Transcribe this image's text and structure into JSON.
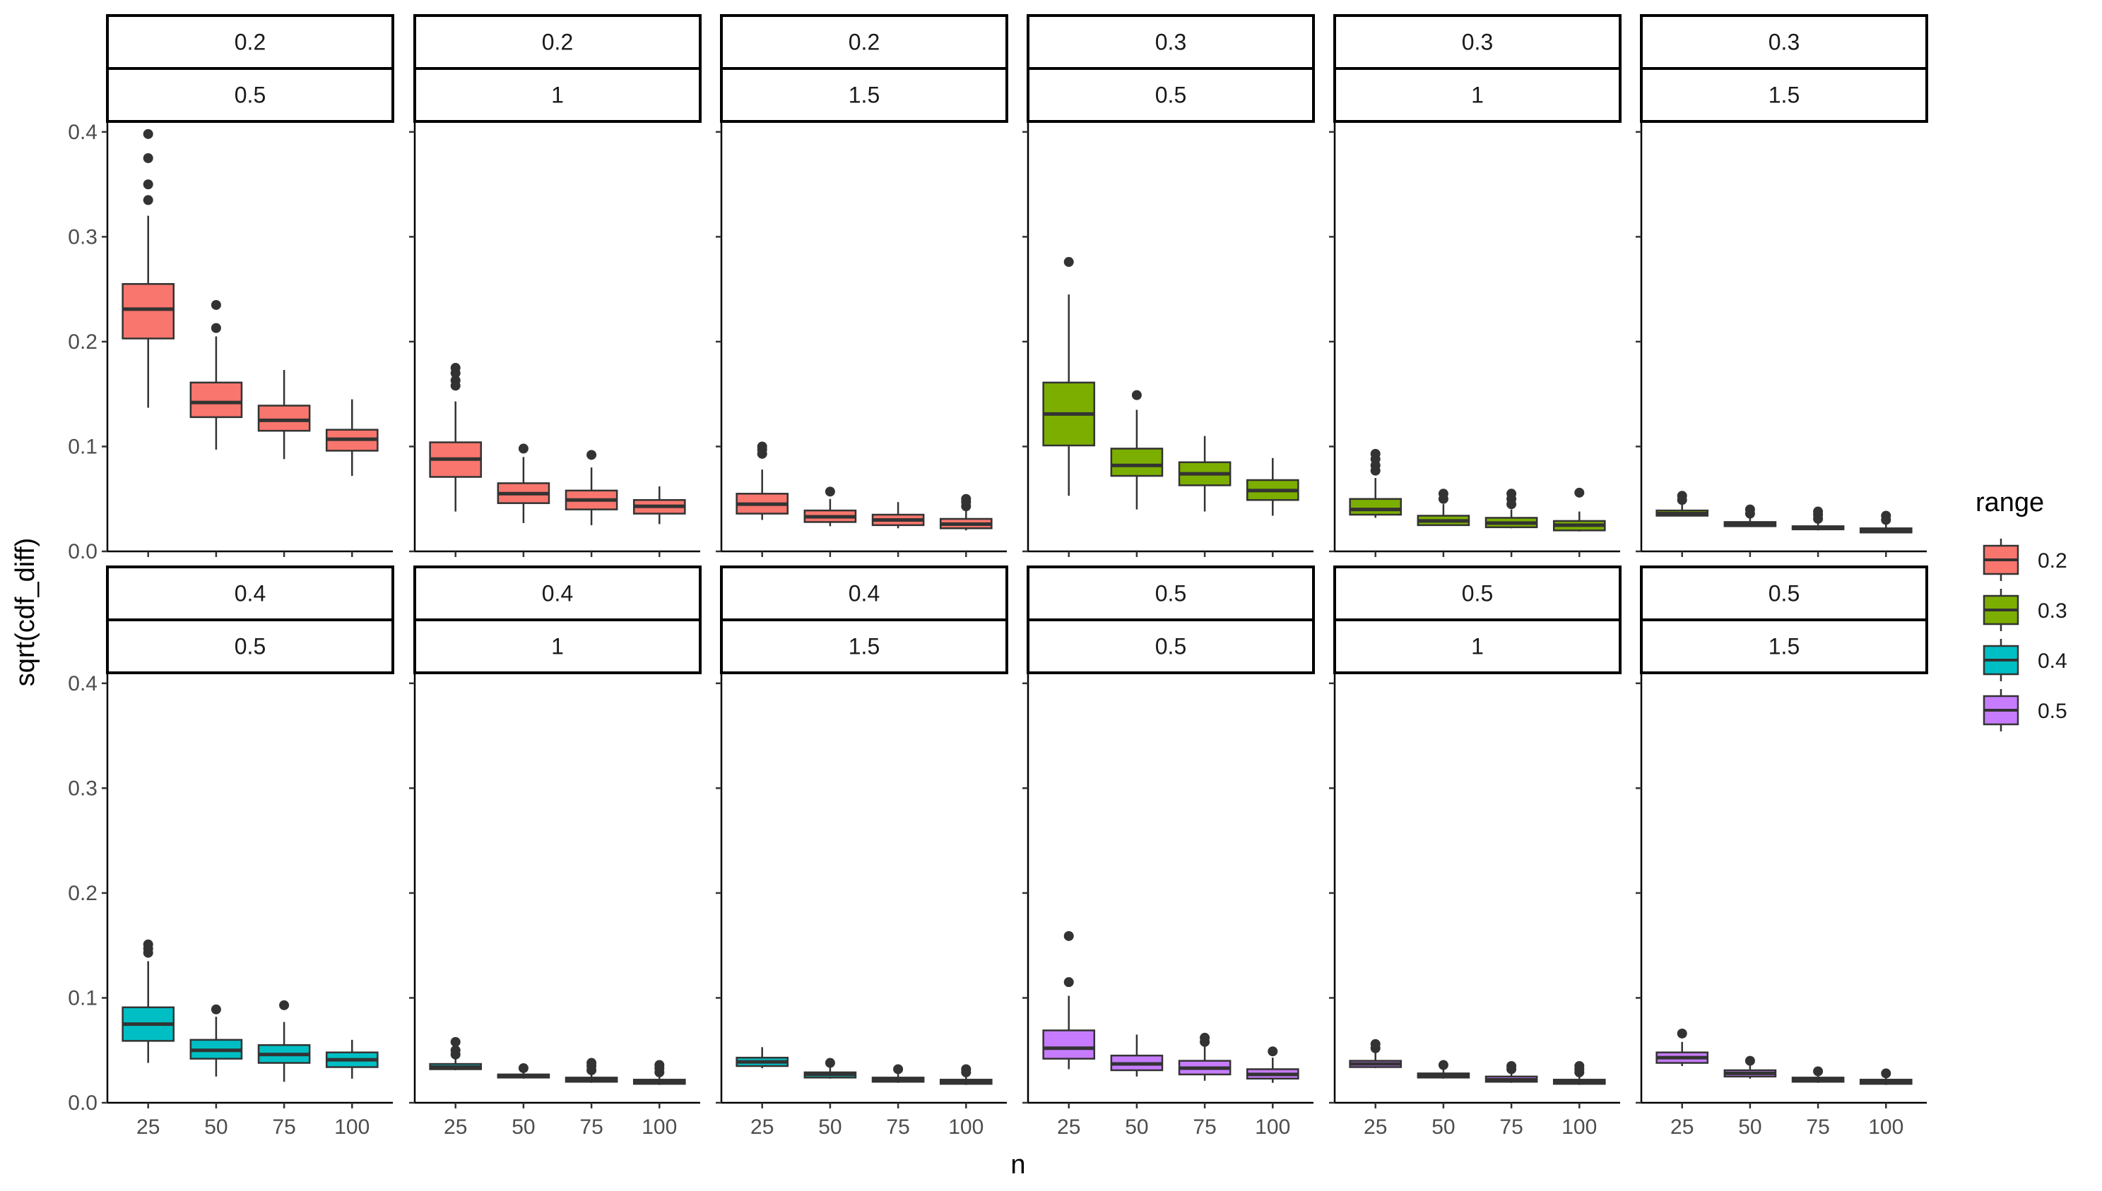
{
  "chart_data": {
    "type": "box",
    "xlabel": "n",
    "ylabel": "sqrt(cdf_diff)",
    "categories": [
      "25",
      "50",
      "75",
      "100"
    ],
    "ylim": [
      0,
      0.41
    ],
    "yticks": [
      "0.0",
      "0.1",
      "0.2",
      "0.3",
      "0.4"
    ],
    "grid": false,
    "legend": {
      "title": "range",
      "position": "right",
      "items": [
        {
          "label": "0.2",
          "color": "#F8766D"
        },
        {
          "label": "0.3",
          "color": "#7CAE00"
        },
        {
          "label": "0.4",
          "color": "#00BFC4"
        },
        {
          "label": "0.5",
          "color": "#C77CFF"
        }
      ]
    },
    "panels": [
      {
        "strip_top": "0.2",
        "strip_bottom": "0.5",
        "color": "#F8766D",
        "boxes": [
          {
            "n": "25",
            "lw": 0.137,
            "q1": 0.203,
            "med": 0.231,
            "q3": 0.255,
            "uw": 0.32,
            "out": [
              0.335,
              0.35,
              0.375,
              0.398
            ]
          },
          {
            "n": "50",
            "lw": 0.097,
            "q1": 0.128,
            "med": 0.142,
            "q3": 0.161,
            "uw": 0.205,
            "out": [
              0.213,
              0.235
            ]
          },
          {
            "n": "75",
            "lw": 0.088,
            "q1": 0.115,
            "med": 0.125,
            "q3": 0.139,
            "uw": 0.173,
            "out": []
          },
          {
            "n": "100",
            "lw": 0.072,
            "q1": 0.096,
            "med": 0.107,
            "q3": 0.116,
            "uw": 0.145,
            "out": []
          }
        ]
      },
      {
        "strip_top": "0.2",
        "strip_bottom": "1",
        "color": "#F8766D",
        "boxes": [
          {
            "n": "25",
            "lw": 0.038,
            "q1": 0.071,
            "med": 0.088,
            "q3": 0.104,
            "uw": 0.143,
            "out": [
              0.158,
              0.163,
              0.17,
              0.175
            ]
          },
          {
            "n": "50",
            "lw": 0.027,
            "q1": 0.046,
            "med": 0.055,
            "q3": 0.065,
            "uw": 0.09,
            "out": [
              0.098
            ]
          },
          {
            "n": "75",
            "lw": 0.025,
            "q1": 0.04,
            "med": 0.049,
            "q3": 0.058,
            "uw": 0.08,
            "out": [
              0.092
            ]
          },
          {
            "n": "100",
            "lw": 0.026,
            "q1": 0.036,
            "med": 0.043,
            "q3": 0.049,
            "uw": 0.062,
            "out": []
          }
        ]
      },
      {
        "strip_top": "0.2",
        "strip_bottom": "1.5",
        "color": "#F8766D",
        "boxes": [
          {
            "n": "25",
            "lw": 0.03,
            "q1": 0.036,
            "med": 0.045,
            "q3": 0.055,
            "uw": 0.078,
            "out": [
              0.093,
              0.097,
              0.1
            ]
          },
          {
            "n": "50",
            "lw": 0.024,
            "q1": 0.028,
            "med": 0.033,
            "q3": 0.039,
            "uw": 0.05,
            "out": [
              0.057
            ]
          },
          {
            "n": "75",
            "lw": 0.022,
            "q1": 0.025,
            "med": 0.03,
            "q3": 0.035,
            "uw": 0.047,
            "out": []
          },
          {
            "n": "100",
            "lw": 0.02,
            "q1": 0.022,
            "med": 0.026,
            "q3": 0.031,
            "uw": 0.039,
            "out": [
              0.043,
              0.047,
              0.05
            ]
          }
        ]
      },
      {
        "strip_top": "0.3",
        "strip_bottom": "0.5",
        "color": "#7CAE00",
        "boxes": [
          {
            "n": "25",
            "lw": 0.053,
            "q1": 0.101,
            "med": 0.131,
            "q3": 0.161,
            "uw": 0.245,
            "out": [
              0.276
            ]
          },
          {
            "n": "50",
            "lw": 0.04,
            "q1": 0.072,
            "med": 0.082,
            "q3": 0.098,
            "uw": 0.135,
            "out": [
              0.149
            ]
          },
          {
            "n": "75",
            "lw": 0.038,
            "q1": 0.063,
            "med": 0.074,
            "q3": 0.085,
            "uw": 0.11,
            "out": []
          },
          {
            "n": "100",
            "lw": 0.034,
            "q1": 0.049,
            "med": 0.058,
            "q3": 0.068,
            "uw": 0.089,
            "out": []
          }
        ]
      },
      {
        "strip_top": "0.3",
        "strip_bottom": "1",
        "color": "#7CAE00",
        "boxes": [
          {
            "n": "25",
            "lw": 0.032,
            "q1": 0.035,
            "med": 0.04,
            "q3": 0.05,
            "uw": 0.07,
            "out": [
              0.077,
              0.082,
              0.088,
              0.093
            ]
          },
          {
            "n": "50",
            "lw": 0.025,
            "q1": 0.025,
            "med": 0.029,
            "q3": 0.034,
            "uw": 0.045,
            "out": [
              0.05,
              0.055
            ]
          },
          {
            "n": "75",
            "lw": 0.022,
            "q1": 0.023,
            "med": 0.027,
            "q3": 0.032,
            "uw": 0.04,
            "out": [
              0.045,
              0.05,
              0.055
            ]
          },
          {
            "n": "100",
            "lw": 0.019,
            "q1": 0.02,
            "med": 0.025,
            "q3": 0.029,
            "uw": 0.038,
            "out": [
              0.056
            ]
          }
        ]
      },
      {
        "strip_top": "0.3",
        "strip_bottom": "1.5",
        "color": "#7CAE00",
        "boxes": [
          {
            "n": "25",
            "lw": 0.034,
            "q1": 0.034,
            "med": 0.036,
            "q3": 0.039,
            "uw": 0.045,
            "out": [
              0.049,
              0.053
            ]
          },
          {
            "n": "50",
            "lw": 0.024,
            "q1": 0.024,
            "med": 0.026,
            "q3": 0.028,
            "uw": 0.032,
            "out": [
              0.036,
              0.04
            ]
          },
          {
            "n": "75",
            "lw": 0.02,
            "q1": 0.021,
            "med": 0.022,
            "q3": 0.024,
            "uw": 0.028,
            "out": [
              0.031,
              0.035,
              0.038
            ]
          },
          {
            "n": "100",
            "lw": 0.018,
            "q1": 0.018,
            "med": 0.02,
            "q3": 0.022,
            "uw": 0.026,
            "out": [
              0.03,
              0.034
            ]
          }
        ]
      },
      {
        "strip_top": "0.4",
        "strip_bottom": "0.5",
        "color": "#00BFC4",
        "boxes": [
          {
            "n": "25",
            "lw": 0.038,
            "q1": 0.059,
            "med": 0.075,
            "q3": 0.091,
            "uw": 0.135,
            "out": [
              0.143,
              0.147,
              0.151
            ]
          },
          {
            "n": "50",
            "lw": 0.025,
            "q1": 0.042,
            "med": 0.05,
            "q3": 0.06,
            "uw": 0.082,
            "out": [
              0.089
            ]
          },
          {
            "n": "75",
            "lw": 0.02,
            "q1": 0.038,
            "med": 0.046,
            "q3": 0.055,
            "uw": 0.077,
            "out": [
              0.093
            ]
          },
          {
            "n": "100",
            "lw": 0.023,
            "q1": 0.034,
            "med": 0.041,
            "q3": 0.048,
            "uw": 0.06,
            "out": []
          }
        ]
      },
      {
        "strip_top": "0.4",
        "strip_bottom": "1",
        "color": "#00BFC4",
        "boxes": [
          {
            "n": "25",
            "lw": 0.031,
            "q1": 0.032,
            "med": 0.034,
            "q3": 0.037,
            "uw": 0.042,
            "out": [
              0.046,
              0.05,
              0.058
            ]
          },
          {
            "n": "50",
            "lw": 0.023,
            "q1": 0.024,
            "med": 0.025,
            "q3": 0.027,
            "uw": 0.03,
            "out": [
              0.033
            ]
          },
          {
            "n": "75",
            "lw": 0.019,
            "q1": 0.02,
            "med": 0.022,
            "q3": 0.024,
            "uw": 0.028,
            "out": [
              0.031,
              0.035,
              0.038
            ]
          },
          {
            "n": "100",
            "lw": 0.017,
            "q1": 0.018,
            "med": 0.02,
            "q3": 0.022,
            "uw": 0.026,
            "out": [
              0.029,
              0.033,
              0.036
            ]
          }
        ]
      },
      {
        "strip_top": "0.4",
        "strip_bottom": "1.5",
        "color": "#00BFC4",
        "boxes": [
          {
            "n": "25",
            "lw": 0.033,
            "q1": 0.035,
            "med": 0.039,
            "q3": 0.043,
            "uw": 0.053,
            "out": []
          },
          {
            "n": "50",
            "lw": 0.023,
            "q1": 0.024,
            "med": 0.027,
            "q3": 0.029,
            "uw": 0.034,
            "out": [
              0.038
            ]
          },
          {
            "n": "75",
            "lw": 0.019,
            "q1": 0.02,
            "med": 0.022,
            "q3": 0.024,
            "uw": 0.028,
            "out": [
              0.032
            ]
          },
          {
            "n": "100",
            "lw": 0.017,
            "q1": 0.018,
            "med": 0.02,
            "q3": 0.022,
            "uw": 0.026,
            "out": [
              0.029,
              0.032
            ]
          }
        ]
      },
      {
        "strip_top": "0.5",
        "strip_bottom": "0.5",
        "color": "#C77CFF",
        "boxes": [
          {
            "n": "25",
            "lw": 0.032,
            "q1": 0.042,
            "med": 0.052,
            "q3": 0.069,
            "uw": 0.102,
            "out": [
              0.115,
              0.159
            ]
          },
          {
            "n": "50",
            "lw": 0.025,
            "q1": 0.031,
            "med": 0.037,
            "q3": 0.045,
            "uw": 0.065,
            "out": []
          },
          {
            "n": "75",
            "lw": 0.021,
            "q1": 0.027,
            "med": 0.033,
            "q3": 0.04,
            "uw": 0.055,
            "out": [
              0.058,
              0.062
            ]
          },
          {
            "n": "100",
            "lw": 0.019,
            "q1": 0.023,
            "med": 0.027,
            "q3": 0.032,
            "uw": 0.043,
            "out": [
              0.049
            ]
          }
        ]
      },
      {
        "strip_top": "0.5",
        "strip_bottom": "1",
        "color": "#C77CFF",
        "boxes": [
          {
            "n": "25",
            "lw": 0.033,
            "q1": 0.034,
            "med": 0.037,
            "q3": 0.04,
            "uw": 0.048,
            "out": [
              0.052,
              0.056
            ]
          },
          {
            "n": "50",
            "lw": 0.023,
            "q1": 0.024,
            "med": 0.026,
            "q3": 0.028,
            "uw": 0.032,
            "out": [
              0.036
            ]
          },
          {
            "n": "75",
            "lw": 0.019,
            "q1": 0.02,
            "med": 0.022,
            "q3": 0.025,
            "uw": 0.029,
            "out": [
              0.032,
              0.035
            ]
          },
          {
            "n": "100",
            "lw": 0.017,
            "q1": 0.018,
            "med": 0.02,
            "q3": 0.022,
            "uw": 0.026,
            "out": [
              0.029,
              0.032,
              0.035
            ]
          }
        ]
      },
      {
        "strip_top": "0.5",
        "strip_bottom": "1.5",
        "color": "#C77CFF",
        "boxes": [
          {
            "n": "25",
            "lw": 0.035,
            "q1": 0.038,
            "med": 0.043,
            "q3": 0.048,
            "uw": 0.058,
            "out": [
              0.066
            ]
          },
          {
            "n": "50",
            "lw": 0.023,
            "q1": 0.025,
            "med": 0.028,
            "q3": 0.031,
            "uw": 0.036,
            "out": [
              0.04
            ]
          },
          {
            "n": "75",
            "lw": 0.019,
            "q1": 0.02,
            "med": 0.022,
            "q3": 0.024,
            "uw": 0.027,
            "out": [
              0.03
            ]
          },
          {
            "n": "100",
            "lw": 0.017,
            "q1": 0.018,
            "med": 0.02,
            "q3": 0.022,
            "uw": 0.025,
            "out": [
              0.028
            ]
          }
        ]
      }
    ]
  }
}
